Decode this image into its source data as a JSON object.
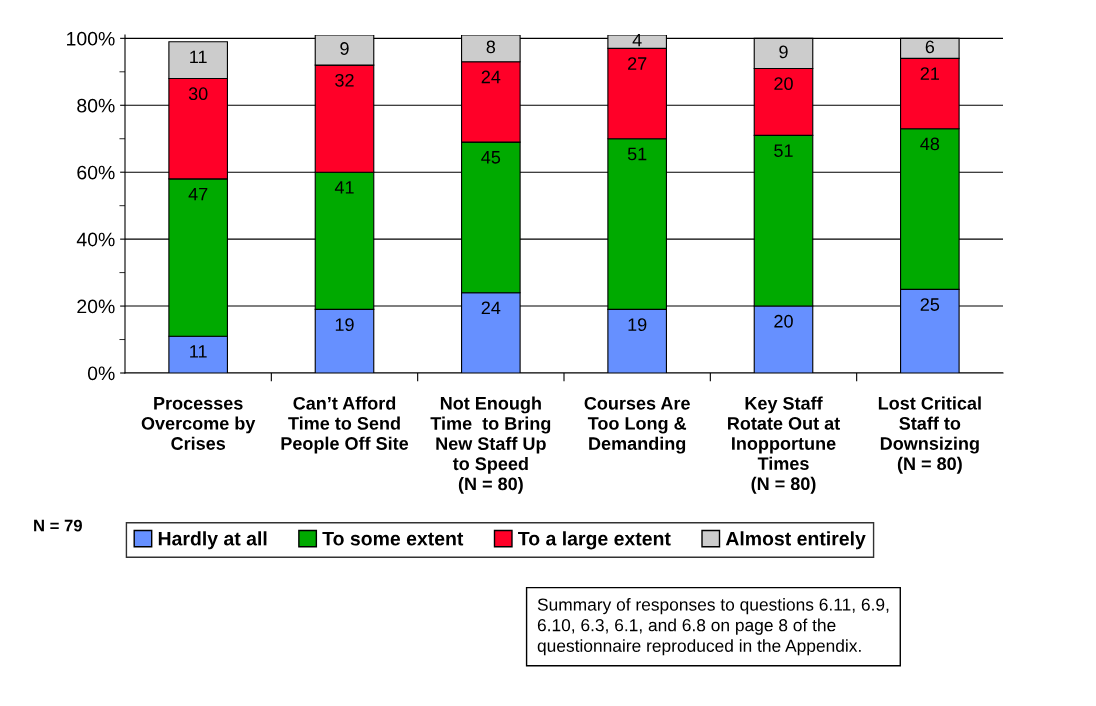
{
  "chart_data": {
    "type": "bar",
    "stacked": true,
    "categories": [
      "Processes\nOvercome by\nCrises",
      "Can’t Afford\nTime to Send\nPeople Off Site",
      "Not Enough\nTime  to Bring\nNew Staff Up\nto Speed\n(N = 80)",
      "Courses Are\nToo Long &\nDemanding",
      "Key Staff\nRotate Out at\nInopportune\nTimes\n(N = 80)",
      "Lost Critical\nStaff to\nDownsizing\n(N = 80)"
    ],
    "series": [
      {
        "name": "Hardly at all",
        "color": "#6690ff",
        "values": [
          11,
          19,
          24,
          19,
          20,
          25
        ]
      },
      {
        "name": "To some extent",
        "color": "#00aa00",
        "values": [
          47,
          41,
          45,
          51,
          51,
          48
        ]
      },
      {
        "name": "To a large extent",
        "color": "#ff0028",
        "values": [
          30,
          32,
          24,
          27,
          20,
          21
        ]
      },
      {
        "name": "Almost entirely",
        "color": "#cccccc",
        "values": [
          11,
          9,
          8,
          4,
          9,
          6
        ]
      }
    ],
    "ylim": [
      0,
      101
    ],
    "yticks": [
      {
        "value": 0,
        "label": "0%"
      },
      {
        "value": 20,
        "label": "20%"
      },
      {
        "value": 40,
        "label": "40%"
      },
      {
        "value": 60,
        "label": "60%"
      },
      {
        "value": 80,
        "label": "80%"
      },
      {
        "value": 100,
        "label": "100%"
      }
    ],
    "grid": "y",
    "legend": "bottom",
    "data_labels": true,
    "annotations": [
      "N = 79",
      "Summary of responses to questions 6.11, 6.9,\n6.10, 6.3, 6.1, and 6.8 on page 8 of the\nquestionnaire reproduced in the Appendix."
    ]
  }
}
